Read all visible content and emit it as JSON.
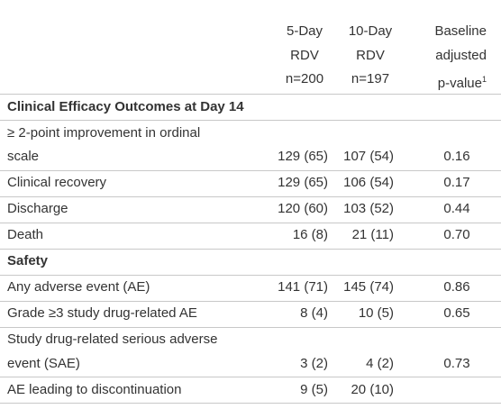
{
  "table": {
    "columns": [
      {
        "lines": [
          "5-Day",
          "RDV",
          "n=200"
        ]
      },
      {
        "lines": [
          "10-Day",
          "RDV",
          "n=197"
        ]
      },
      {
        "lines": [
          "Baseline",
          "adjusted",
          "p-value"
        ],
        "footnote": "1"
      }
    ],
    "rows": [
      {
        "section": "Clinical Efficacy Outcomes at Day 14"
      },
      {
        "label": [
          "≥ 2-point improvement in ordinal",
          "scale"
        ],
        "cells": [
          "129 (65)",
          "107 (54)",
          "0.16"
        ]
      },
      {
        "label": [
          "Clinical recovery"
        ],
        "cells": [
          "129 (65)",
          "106 (54)",
          "0.17"
        ]
      },
      {
        "label": [
          "Discharge"
        ],
        "cells": [
          "120 (60)",
          "103 (52)",
          "0.44"
        ]
      },
      {
        "label": [
          "Death"
        ],
        "cells": [
          "16 (8)",
          "21 (11)",
          "0.70"
        ]
      },
      {
        "section": "Safety"
      },
      {
        "label": [
          "Any adverse event (AE)"
        ],
        "cells": [
          "141 (71)",
          "145 (74)",
          "0.86"
        ]
      },
      {
        "label": [
          "Grade ≥3 study drug-related AE"
        ],
        "cells": [
          "8 (4)",
          "10 (5)",
          "0.65"
        ]
      },
      {
        "label": [
          "Study drug-related serious adverse",
          "event (SAE)"
        ],
        "cells": [
          "3 (2)",
          "4 (2)",
          "0.73"
        ]
      },
      {
        "label": [
          "AE leading to discontinuation"
        ],
        "cells": [
          "9 (5)",
          "20 (10)"
        ]
      }
    ]
  }
}
